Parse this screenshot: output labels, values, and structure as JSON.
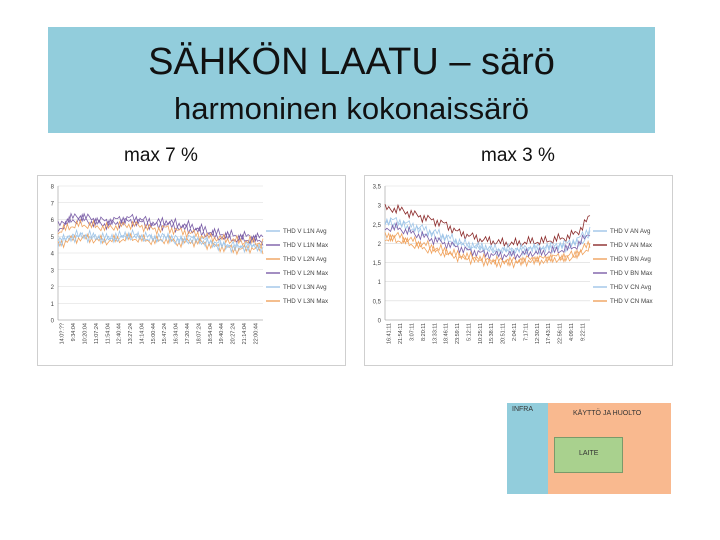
{
  "slide": {
    "title": "SÄHKÖN LAATU – särö",
    "subtitle": "harmoninen kokonaissärö",
    "label_left": "max 7 %",
    "label_right": "max 3 %"
  },
  "colors": {
    "header_bg": "#92cddc",
    "series_blue_light": "#9fc5e8",
    "series_purple": "#7b5ea7",
    "series_orange": "#f0a35e",
    "series_darkred": "#8b2a2a",
    "infra_box": "#92cddc",
    "kaytto_box": "#f9b98f",
    "laite_box": "#a9d18e"
  },
  "chart_data": [
    {
      "type": "line",
      "ylim": [
        0,
        8
      ],
      "yticks": [
        "0",
        "1",
        "2",
        "3",
        "4",
        "5",
        "6",
        "7",
        "8"
      ],
      "xticks": [
        "14:0?:??",
        "9:34:04",
        "10:20:04",
        "11:07:24",
        "11:54:04",
        "12:40:44",
        "13:27:24",
        "14:14:04",
        "15:00:44",
        "15:47:24",
        "16:34:04",
        "17:20:44",
        "18:07:24",
        "18:54:04",
        "19:40:44",
        "20:27:24",
        "21:14:04",
        "22:00:44"
      ],
      "series": [
        {
          "name": "THD V L1N Avg",
          "values": [
            4.7,
            5.0,
            5.1,
            5.0,
            4.9,
            5.0,
            5.1,
            5.0,
            4.9,
            5.0,
            4.8,
            4.9,
            4.8,
            4.6,
            4.5,
            4.4,
            4.5,
            4.4
          ]
        },
        {
          "name": "THD V L1N Max",
          "values": [
            5.6,
            6.1,
            6.2,
            6.0,
            5.9,
            6.0,
            6.1,
            6.0,
            5.8,
            5.9,
            5.7,
            5.6,
            5.4,
            5.2,
            5.1,
            5.0,
            5.0,
            4.9
          ]
        },
        {
          "name": "THD V L2N Avg",
          "values": [
            4.5,
            4.8,
            4.9,
            4.8,
            4.7,
            4.8,
            4.9,
            4.8,
            4.7,
            4.8,
            4.6,
            4.7,
            4.6,
            4.4,
            4.3,
            4.2,
            4.3,
            4.2
          ]
        },
        {
          "name": "THD V L2N Max",
          "values": [
            5.4,
            5.9,
            6.0,
            5.8,
            5.7,
            5.8,
            5.9,
            5.8,
            5.6,
            5.7,
            5.5,
            5.4,
            5.2,
            5.0,
            4.9,
            4.8,
            4.8,
            4.7
          ]
        },
        {
          "name": "THD V L3N Avg",
          "values": [
            4.6,
            4.9,
            5.0,
            4.9,
            4.8,
            4.9,
            5.0,
            4.9,
            4.8,
            4.9,
            4.7,
            4.8,
            4.7,
            4.5,
            4.4,
            4.3,
            4.4,
            4.3
          ]
        },
        {
          "name": "THD V L3N Max",
          "values": [
            5.2,
            5.6,
            5.7,
            5.6,
            5.5,
            5.6,
            5.7,
            5.6,
            5.4,
            5.5,
            5.3,
            5.2,
            5.0,
            4.9,
            4.8,
            4.7,
            4.7,
            4.6
          ]
        }
      ]
    },
    {
      "type": "line",
      "ylim": [
        0,
        3.5
      ],
      "yticks": [
        "0",
        "0,5",
        "1",
        "1,5",
        "2",
        "2,5",
        "3",
        "3,5"
      ],
      "xticks": [
        "16:41:11",
        "21:54:11",
        "3:07:11",
        "8:20:11",
        "13:33:11",
        "18:46:11",
        "23:59:11",
        "5:12:11",
        "10:25:11",
        "15:38:11",
        "20:51:11",
        "2:04:11",
        "7:17:11",
        "12:30:11",
        "17:43:11",
        "22:56:11",
        "4:09:11",
        "9:22:11"
      ],
      "series": [
        {
          "name": "THD V AN Avg",
          "values": [
            2.5,
            2.5,
            2.4,
            2.3,
            2.2,
            2.1,
            2.0,
            1.9,
            1.9,
            1.8,
            1.8,
            1.8,
            1.85,
            1.85,
            1.9,
            1.9,
            2.0,
            2.2
          ]
        },
        {
          "name": "THD V AN Max",
          "values": [
            2.9,
            2.9,
            2.8,
            2.7,
            2.6,
            2.5,
            2.3,
            2.2,
            2.1,
            2.05,
            2.0,
            2.0,
            2.05,
            2.05,
            2.1,
            2.15,
            2.3,
            2.7
          ]
        },
        {
          "name": "THD V BN Avg",
          "values": [
            2.2,
            2.2,
            2.1,
            2.0,
            1.9,
            1.8,
            1.7,
            1.65,
            1.6,
            1.55,
            1.55,
            1.55,
            1.6,
            1.6,
            1.65,
            1.65,
            1.75,
            2.0
          ]
        },
        {
          "name": "THD V BN Max",
          "values": [
            2.4,
            2.4,
            2.3,
            2.2,
            2.1,
            2.0,
            1.9,
            1.8,
            1.75,
            1.7,
            1.7,
            1.7,
            1.75,
            1.75,
            1.8,
            1.85,
            1.95,
            2.3
          ]
        },
        {
          "name": "THD V CN Avg",
          "values": [
            2.6,
            2.6,
            2.5,
            2.4,
            2.3,
            2.2,
            2.05,
            1.95,
            1.9,
            1.85,
            1.85,
            1.85,
            1.9,
            1.9,
            1.95,
            2.0,
            2.1,
            2.4
          ]
        },
        {
          "name": "THD V CN Max",
          "values": [
            2.1,
            2.1,
            2.0,
            1.9,
            1.8,
            1.75,
            1.65,
            1.6,
            1.55,
            1.5,
            1.5,
            1.5,
            1.55,
            1.55,
            1.6,
            1.6,
            1.7,
            1.9
          ]
        }
      ]
    }
  ],
  "diagram": {
    "infra_label": "INFRA",
    "kaytto_label": "KÄYTTÖ JA HUOLTO",
    "laite_label": "LAITE"
  }
}
